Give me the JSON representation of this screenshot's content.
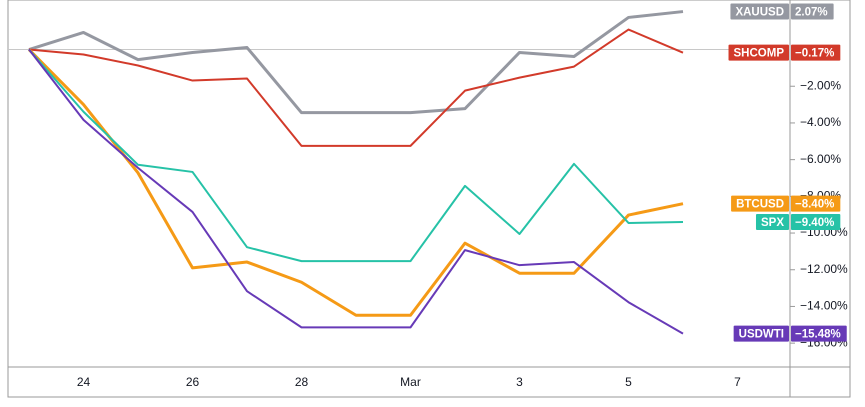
{
  "chart_data": {
    "type": "line",
    "categories": [
      null,
      "24",
      null,
      "26",
      null,
      "28",
      null,
      "Mar",
      null,
      "3",
      null,
      "5",
      null,
      "7"
    ],
    "ylim": [
      -17.3,
      2.7
    ],
    "yticks": [
      {
        "value": -2,
        "label": "−2.00%"
      },
      {
        "value": -4,
        "label": "−4.00%"
      },
      {
        "value": -6,
        "label": "−6.00%"
      },
      {
        "value": -8,
        "label": "−8.00%"
      },
      {
        "value": -10,
        "label": "−10.00%"
      },
      {
        "value": -12,
        "label": "−12.00%"
      },
      {
        "value": -14,
        "label": "−14.00%"
      },
      {
        "value": -16,
        "label": "−16.00%"
      }
    ],
    "zero_line": true,
    "series": [
      {
        "name": "XAUUSD",
        "color": "#9598a1",
        "width": 3,
        "values": [
          0,
          0.93,
          -0.55,
          -0.16,
          0.11,
          -3.44,
          -3.44,
          -3.44,
          -3.22,
          -0.16,
          -0.38,
          1.75,
          2.07,
          null
        ],
        "value_labels": [
          null,
          null,
          null,
          null,
          null,
          null,
          null,
          null,
          null,
          null,
          null,
          null,
          "2.07%",
          null
        ]
      },
      {
        "name": "SHCOMP",
        "color": "#d23a2a",
        "width": 2,
        "values": [
          0,
          -0.27,
          -0.87,
          -1.69,
          -1.58,
          -5.25,
          -5.25,
          -5.25,
          -2.24,
          -1.53,
          -0.93,
          1.09,
          -0.17,
          null
        ],
        "value_labels": [
          null,
          null,
          null,
          null,
          null,
          null,
          null,
          null,
          null,
          null,
          null,
          null,
          "−0.17%",
          null
        ]
      },
      {
        "name": "BTCUSD",
        "color": "#f59a16",
        "width": 3,
        "values": [
          0,
          -3.0,
          -6.72,
          -11.9,
          -11.58,
          -12.68,
          -14.48,
          -14.48,
          -10.55,
          -12.19,
          -12.19,
          -9.02,
          -8.4,
          null
        ],
        "value_labels": [
          null,
          null,
          null,
          null,
          null,
          null,
          null,
          null,
          null,
          null,
          null,
          null,
          "−8.40%",
          null
        ]
      },
      {
        "name": "SPX",
        "color": "#26c2a7",
        "width": 2,
        "values": [
          0,
          -3.39,
          -6.28,
          -6.67,
          -10.77,
          -11.53,
          -11.53,
          -11.53,
          -7.43,
          -10.05,
          -6.23,
          -9.45,
          -9.4,
          null
        ],
        "value_labels": [
          null,
          null,
          null,
          null,
          null,
          null,
          null,
          null,
          null,
          null,
          null,
          null,
          "−9.40%",
          null
        ]
      },
      {
        "name": "USDWTI",
        "color": "#673ab7",
        "width": 2,
        "values": [
          0,
          -3.83,
          -6.45,
          -8.85,
          -13.17,
          -15.14,
          -15.14,
          -15.14,
          -10.93,
          -11.75,
          -11.58,
          -13.77,
          -15.48,
          null
        ],
        "value_labels": [
          null,
          null,
          null,
          null,
          null,
          null,
          null,
          null,
          null,
          null,
          null,
          null,
          "−15.48%",
          null
        ]
      }
    ]
  }
}
